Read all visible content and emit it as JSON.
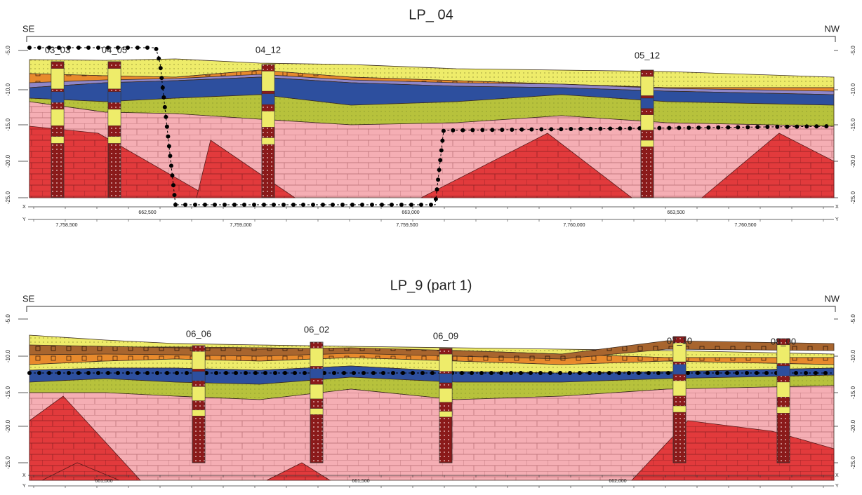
{
  "sections": [
    {
      "title": "LP_ 04",
      "left_label": "SE",
      "right_label": "NW",
      "boreholes": [
        "03_03",
        "04_05",
        "04_12",
        "05_12"
      ],
      "depth_ticks": [
        "-5.0",
        "-10.0",
        "-15.0",
        "-20.0",
        "-25.0"
      ],
      "x_axis": {
        "label": "X",
        "ticks": [
          "662,500",
          "663,000",
          "663,500"
        ]
      },
      "y_axis": {
        "label": "Y",
        "ticks": [
          "7,758,500",
          "7,759,000",
          "7,759,500",
          "7,760,000",
          "7,760,500"
        ]
      }
    },
    {
      "title": "LP_9 (part 1)",
      "left_label": "SE",
      "right_label": "NW",
      "boreholes": [
        "06_06",
        "06_02",
        "06_09",
        "07_10",
        "08_00"
      ],
      "depth_ticks": [
        "-5.0",
        "-10.0",
        "-15.0",
        "-20.0",
        "-25.0"
      ],
      "x_axis": {
        "label": "X",
        "ticks": [
          "661,000",
          "661,500",
          "662,000"
        ]
      },
      "y_axis": {
        "label": "Y"
      }
    }
  ]
}
